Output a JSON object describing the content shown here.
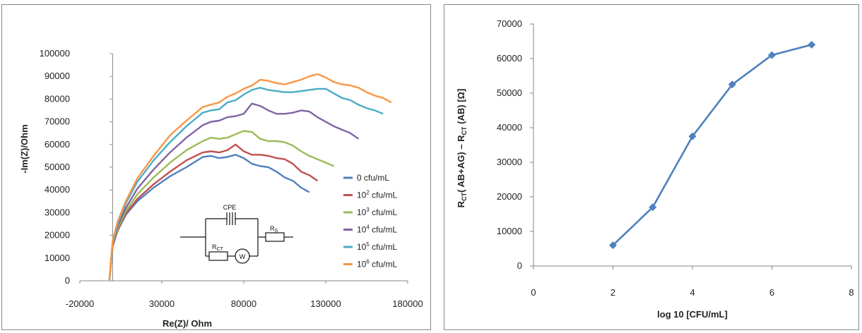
{
  "chart_data": [
    {
      "type": "line",
      "xlabel": "Re(Z)/ Ohm",
      "ylabel": "-Im(Z)/Ohm",
      "x_ticks": [
        "-20000",
        "30000",
        "80000",
        "130000",
        "180000"
      ],
      "y_ticks": [
        "0",
        "10000",
        "20000",
        "30000",
        "40000",
        "50000",
        "60000",
        "70000",
        "80000",
        "90000",
        "100000"
      ],
      "xlim": [
        -20000,
        180000
      ],
      "ylim": [
        0,
        100000
      ],
      "grid": false,
      "legend_position": "bottom-right",
      "series": [
        {
          "name": "0 cfu/mL",
          "name_base": "0",
          "name_sup": "",
          "name_unit": " cfu/mL",
          "color": "#4f81bd",
          "x": [
            -2000,
            0,
            3000,
            8000,
            15000,
            25000,
            35000,
            45000,
            55000,
            60000,
            65000,
            70000,
            75000,
            80000,
            85000,
            90000,
            95000,
            100000,
            105000,
            110000,
            115000,
            120000
          ],
          "y": [
            0,
            15000,
            22000,
            29000,
            35000,
            41000,
            46000,
            50000,
            54500,
            55000,
            54000,
            54500,
            55500,
            54000,
            51500,
            50500,
            50000,
            48000,
            45500,
            44000,
            41000,
            39000
          ]
        },
        {
          "name": "10^2 cfu/mL",
          "name_base": "10",
          "name_sup": "2",
          "name_unit": " cfu/mL",
          "color": "#c0504d",
          "x": [
            -2000,
            0,
            3000,
            8000,
            15000,
            25000,
            35000,
            45000,
            55000,
            60000,
            65000,
            70000,
            75000,
            80000,
            85000,
            90000,
            95000,
            100000,
            105000,
            110000,
            115000,
            120000,
            125000
          ],
          "y": [
            0,
            15500,
            22500,
            29500,
            36000,
            42500,
            48000,
            53000,
            56500,
            57000,
            56500,
            57500,
            60000,
            57000,
            55500,
            55500,
            55000,
            54000,
            53500,
            51500,
            48000,
            46500,
            44000
          ]
        },
        {
          "name": "10^3 cfu/mL",
          "name_base": "10",
          "name_sup": "3",
          "name_unit": " cfu/mL",
          "color": "#9bbb59",
          "x": [
            -2000,
            0,
            3000,
            8000,
            15000,
            25000,
            35000,
            45000,
            55000,
            60000,
            65000,
            70000,
            75000,
            80000,
            85000,
            90000,
            95000,
            100000,
            105000,
            110000,
            115000,
            120000,
            125000,
            130000,
            135000
          ],
          "y": [
            0,
            16000,
            23000,
            30500,
            38000,
            45500,
            52000,
            57500,
            61500,
            63000,
            62500,
            63000,
            64500,
            66000,
            65500,
            62500,
            61500,
            61500,
            61000,
            59500,
            57000,
            55000,
            53500,
            52000,
            50500
          ]
        },
        {
          "name": "10^4 cfu/mL",
          "name_base": "10",
          "name_sup": "4",
          "name_unit": " cfu/mL",
          "color": "#8064a2",
          "x": [
            -2000,
            0,
            3000,
            8000,
            15000,
            25000,
            35000,
            45000,
            55000,
            60000,
            65000,
            70000,
            75000,
            80000,
            85000,
            90000,
            95000,
            100000,
            105000,
            110000,
            115000,
            120000,
            125000,
            130000,
            135000,
            140000,
            145000,
            150000
          ],
          "y": [
            0,
            16500,
            24000,
            32000,
            40500,
            49000,
            56500,
            63000,
            68500,
            70000,
            70500,
            72000,
            72500,
            73500,
            78000,
            77000,
            75000,
            73500,
            73500,
            74000,
            75000,
            74500,
            72000,
            70000,
            68000,
            66500,
            65000,
            62500
          ]
        },
        {
          "name": "10^5 cfu/mL",
          "name_base": "10",
          "name_sup": "5",
          "name_unit": " cfu/mL",
          "color": "#4bacc6",
          "x": [
            -2000,
            0,
            3000,
            8000,
            15000,
            25000,
            35000,
            45000,
            55000,
            60000,
            65000,
            70000,
            75000,
            80000,
            85000,
            90000,
            95000,
            100000,
            105000,
            110000,
            115000,
            120000,
            125000,
            130000,
            135000,
            140000,
            145000,
            150000,
            155000,
            160000,
            165000
          ],
          "y": [
            0,
            17000,
            25000,
            34000,
            43500,
            53000,
            61000,
            68000,
            74000,
            75000,
            75500,
            78500,
            79500,
            82000,
            84000,
            85000,
            84000,
            83500,
            83000,
            83000,
            83500,
            84000,
            84500,
            84500,
            82500,
            80500,
            79500,
            77500,
            76000,
            75000,
            73500
          ]
        },
        {
          "name": "10^6 cfu/mL",
          "name_base": "10",
          "name_sup": "6",
          "name_unit": " cfu/mL",
          "color": "#f79646",
          "x": [
            -2000,
            0,
            3000,
            8000,
            15000,
            25000,
            35000,
            45000,
            55000,
            60000,
            65000,
            70000,
            75000,
            80000,
            85000,
            90000,
            95000,
            100000,
            105000,
            110000,
            115000,
            120000,
            125000,
            130000,
            135000,
            140000,
            145000,
            150000,
            155000,
            160000,
            165000,
            170000
          ],
          "y": [
            0,
            17500,
            26000,
            35000,
            45000,
            55000,
            64000,
            70500,
            76500,
            77500,
            78500,
            81000,
            82500,
            84500,
            86000,
            88500,
            88000,
            87000,
            86500,
            87500,
            88500,
            90000,
            91000,
            89500,
            87500,
            86500,
            86000,
            85000,
            83000,
            81500,
            80500,
            78500
          ]
        }
      ]
    },
    {
      "type": "line",
      "xlabel": "log 10 [CFU/mL]",
      "ylabel": "RCT( AB+AG) – RCT (AB) [Ω]",
      "x_ticks": [
        "0",
        "2",
        "4",
        "6",
        "8"
      ],
      "y_ticks": [
        "0",
        "10000",
        "20000",
        "30000",
        "40000",
        "50000",
        "60000",
        "70000"
      ],
      "xlim": [
        0,
        8
      ],
      "ylim": [
        0,
        70000
      ],
      "grid": false,
      "series": [
        {
          "color": "#4f81bd",
          "marker": "diamond",
          "x": [
            2,
            3,
            4,
            5,
            6,
            7
          ],
          "y": [
            6000,
            17000,
            37500,
            52500,
            61000,
            64000
          ]
        }
      ]
    }
  ],
  "circuit": {
    "cpe_label": "CPE",
    "rct_label": "R",
    "rct_sub": "CT",
    "w_label": "W",
    "rs_label": "R",
    "rs_sub": "S"
  },
  "right_ylabel_parts": {
    "r1": "R",
    "sub1": "CT",
    "mid": "( AB+AG)  – R",
    "sub2": "CT",
    "end": " (AB)  [Ω]"
  }
}
